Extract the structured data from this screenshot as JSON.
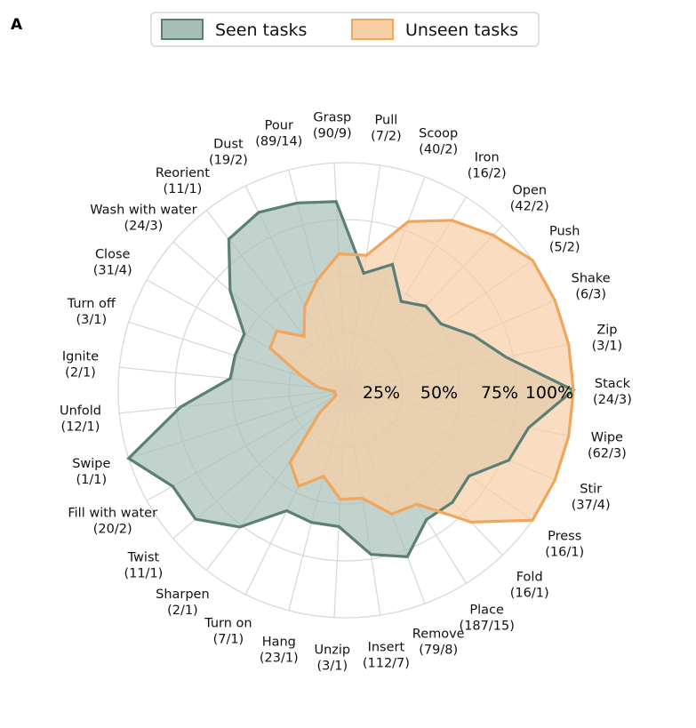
{
  "panel_label": "A",
  "chart_data": {
    "type": "radar",
    "title": "",
    "legend_placement": "top-center",
    "axes_start": "Stack",
    "direction": "counterclockwise",
    "radial_ticks": [
      "25%",
      "50%",
      "75%",
      "100%"
    ],
    "radial_range": [
      0,
      100
    ],
    "grid": true,
    "categories": [
      {
        "name": "Stack",
        "counts": "(24/3)"
      },
      {
        "name": "Zip",
        "counts": "(3/1)"
      },
      {
        "name": "Shake",
        "counts": "(6/3)"
      },
      {
        "name": "Push",
        "counts": "(5/2)"
      },
      {
        "name": "Open",
        "counts": "(42/2)"
      },
      {
        "name": "Iron",
        "counts": "(16/2)"
      },
      {
        "name": "Scoop",
        "counts": "(40/2)"
      },
      {
        "name": "Pull",
        "counts": "(7/2)"
      },
      {
        "name": "Grasp",
        "counts": "(90/9)"
      },
      {
        "name": "Pour",
        "counts": "(89/14)"
      },
      {
        "name": "Dust",
        "counts": "(19/2)"
      },
      {
        "name": "Reorient",
        "counts": "(11/1)"
      },
      {
        "name": "Wash with water",
        "counts": "(24/3)"
      },
      {
        "name": "Close",
        "counts": "(31/4)"
      },
      {
        "name": "Turn off",
        "counts": "(3/1)"
      },
      {
        "name": "Ignite",
        "counts": "(2/1)"
      },
      {
        "name": "Unfold",
        "counts": "(12/1)"
      },
      {
        "name": "Swipe",
        "counts": "(1/1)"
      },
      {
        "name": "Fill with water",
        "counts": "(20/2)"
      },
      {
        "name": "Twist",
        "counts": "(11/1)"
      },
      {
        "name": "Sharpen",
        "counts": "(2/1)"
      },
      {
        "name": "Turn on",
        "counts": "(7/1)"
      },
      {
        "name": "Hang",
        "counts": "(23/1)"
      },
      {
        "name": "Unzip",
        "counts": "(3/1)"
      },
      {
        "name": "Insert",
        "counts": "(112/7)"
      },
      {
        "name": "Remove",
        "counts": "(79/8)"
      },
      {
        "name": "Place",
        "counts": "(187/15)"
      },
      {
        "name": "Fold",
        "counts": "(16/1)"
      },
      {
        "name": "Press",
        "counts": "(16/1)"
      },
      {
        "name": "Stir",
        "counts": "(37/4)"
      },
      {
        "name": "Wipe",
        "counts": "(62/3)"
      }
    ],
    "series": [
      {
        "name": "Seen tasks",
        "color": "#5a7f76",
        "fill": "#a8bfb8",
        "values": [
          100,
          72,
          61,
          51,
          51,
          46,
          59,
          52,
          83,
          85,
          87,
          84,
          67,
          51,
          51,
          51,
          73,
          100,
          87,
          87,
          76,
          59,
          60,
          60,
          73,
          78,
          67,
          68,
          66,
          78,
          82
        ]
      },
      {
        "name": "Unseen tasks",
        "color": "#f0a65c",
        "fill": "#f8cfa5",
        "values": [
          100,
          100,
          100,
          100,
          94,
          88,
          79,
          60,
          60,
          50,
          41,
          30,
          40,
          38,
          20,
          12,
          5,
          5,
          5,
          15,
          40,
          47,
          39,
          48,
          48,
          58,
          59,
          80,
          100,
          100,
          100
        ]
      }
    ]
  }
}
